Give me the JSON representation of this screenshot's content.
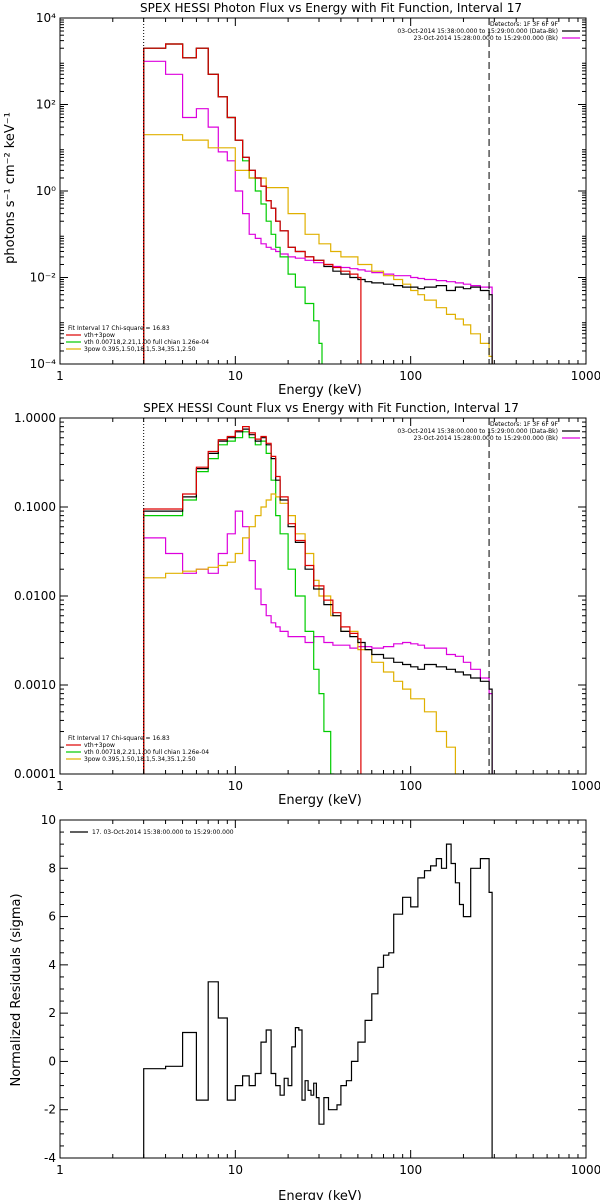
{
  "chart_data": [
    {
      "type": "line",
      "title": "SPEX HESSI Photon Flux vs Energy with Fit Function, Interval 17",
      "xlabel": "Energy (keV)",
      "ylabel": "photons s⁻¹ cm⁻² keV⁻¹",
      "xscale": "log",
      "yscale": "log",
      "xlim": [
        1,
        1000
      ],
      "ylim": [
        0.0001,
        10000
      ],
      "x_ticks": [
        {
          "value": 1,
          "label": "1"
        },
        {
          "value": 10,
          "label": "10"
        },
        {
          "value": 100,
          "label": "100"
        },
        {
          "value": 1000,
          "label": "1000"
        }
      ],
      "y_ticks": [
        {
          "value": 0.0001,
          "label": "10⁻⁴"
        },
        {
          "value": 0.01,
          "label": "10⁻²"
        },
        {
          "value": 1,
          "label": "10⁰"
        },
        {
          "value": 100,
          "label": "10²"
        },
        {
          "value": 10000,
          "label": "10⁴"
        }
      ],
      "vlines": [
        {
          "x": 3,
          "style": "dotted",
          "color": "#000000"
        },
        {
          "x": 280,
          "style": "dashed",
          "color": "#000000"
        }
      ],
      "legend_topright": [
        {
          "text": "Detectors: 1F 3F 6F 9F",
          "color": ""
        },
        {
          "text": "03-Oct-2014 15:38:00.000 to 15:29:00.000 (Data-Bk)",
          "color": "#000000"
        },
        {
          "text": "23-Oct-2014 15:28:00.000 to 15:29:00.000 (Bk)",
          "color": "#dd00dd"
        }
      ],
      "legend_bottomleft": [
        {
          "text": "Fit Interval 17    Chi-square = 16.83",
          "color": ""
        },
        {
          "text": "vth+3pow",
          "color": "#dd0000"
        },
        {
          "text": "vth 0.00718,2.21,1.00  full chian 1.26e-04",
          "color": "#00cc00"
        },
        {
          "text": "3pow 0.395,1.50,18.1,5.34,35.1,2.50",
          "color": "#e0b000"
        }
      ],
      "series": [
        {
          "color": "#dd00dd",
          "x": [
            3,
            4,
            5,
            6,
            7,
            8,
            9,
            10,
            11,
            12,
            13,
            14,
            15,
            16,
            17,
            18,
            20,
            22,
            25,
            28,
            32,
            36,
            40,
            45,
            50,
            55,
            60,
            70,
            80,
            90,
            100,
            110,
            120,
            140,
            160,
            180,
            200,
            220,
            250,
            280
          ],
          "y": [
            1000,
            500,
            50,
            80,
            30,
            8,
            5,
            1,
            0.3,
            0.1,
            0.08,
            0.06,
            0.05,
            0.045,
            0.04,
            0.035,
            0.03,
            0.028,
            0.025,
            0.022,
            0.02,
            0.018,
            0.017,
            0.016,
            0.015,
            0.014,
            0.013,
            0.012,
            0.011,
            0.011,
            0.01,
            0.0095,
            0.009,
            0.0085,
            0.008,
            0.0075,
            0.007,
            0.0065,
            0.006,
            0.006
          ]
        },
        {
          "color": "#00cc00",
          "x": [
            3,
            4,
            5,
            6,
            7,
            8,
            9,
            10,
            11,
            12,
            13,
            14,
            15,
            16,
            17,
            18,
            20,
            22,
            25,
            28,
            30
          ],
          "y": [
            2000,
            2500,
            1200,
            2000,
            500,
            150,
            50,
            15,
            5,
            2,
            1,
            0.5,
            0.2,
            0.1,
            0.05,
            0.03,
            0.012,
            0.006,
            0.0025,
            0.001,
            0.0003
          ]
        },
        {
          "color": "#e0b000",
          "x": [
            3,
            5,
            7,
            10,
            12,
            15,
            20,
            25,
            30,
            35,
            40,
            50,
            60,
            70,
            80,
            90,
            100,
            110,
            120,
            140,
            160,
            180,
            200,
            220,
            250,
            280
          ],
          "y": [
            20,
            15,
            10,
            3,
            2,
            1.2,
            0.3,
            0.1,
            0.06,
            0.04,
            0.03,
            0.02,
            0.014,
            0.011,
            0.009,
            0.007,
            0.005,
            0.004,
            0.003,
            0.002,
            0.0014,
            0.0011,
            0.0008,
            0.0005,
            0.0003,
            0.00015
          ]
        },
        {
          "color": "#000000",
          "x": [
            3,
            4,
            5,
            6,
            7,
            8,
            9,
            10,
            11,
            12,
            13,
            14,
            15,
            16,
            17,
            18,
            20,
            22,
            25,
            28,
            32,
            36,
            40,
            45,
            50,
            55,
            60,
            70,
            80,
            90,
            100,
            110,
            120,
            140,
            160,
            180,
            200,
            220,
            250,
            280
          ],
          "y": [
            2000,
            2500,
            1200,
            2000,
            500,
            150,
            50,
            15,
            6,
            3,
            2,
            1.3,
            0.6,
            0.4,
            0.2,
            0.12,
            0.05,
            0.04,
            0.03,
            0.025,
            0.018,
            0.014,
            0.012,
            0.01,
            0.009,
            0.008,
            0.0075,
            0.007,
            0.0065,
            0.006,
            0.006,
            0.0055,
            0.006,
            0.0065,
            0.005,
            0.006,
            0.0055,
            0.006,
            0.005,
            0.004
          ]
        },
        {
          "color": "#dd0000",
          "x": [
            3,
            4,
            5,
            6,
            7,
            8,
            9,
            10,
            11,
            12,
            13,
            14,
            15,
            16,
            17,
            18,
            20,
            22,
            25,
            28,
            32,
            36,
            40,
            45,
            50
          ],
          "y": [
            2000,
            2500,
            1200,
            2000,
            500,
            150,
            50,
            15,
            6,
            3,
            2,
            1.3,
            0.6,
            0.4,
            0.2,
            0.12,
            0.05,
            0.04,
            0.03,
            0.025,
            0.02,
            0.017,
            0.014,
            0.012,
            0.01
          ]
        }
      ]
    },
    {
      "type": "line",
      "title": "SPEX HESSI Count Flux vs Energy with Fit Function, Interval 17",
      "xlabel": "Energy (keV)",
      "ylabel": "",
      "xscale": "log",
      "yscale": "log",
      "xlim": [
        1,
        1000
      ],
      "ylim": [
        0.0001,
        1
      ],
      "x_ticks": [
        {
          "value": 1,
          "label": "1"
        },
        {
          "value": 10,
          "label": "10"
        },
        {
          "value": 100,
          "label": "100"
        },
        {
          "value": 1000,
          "label": "1000"
        }
      ],
      "y_ticks": [
        {
          "value": 0.0001,
          "label": "0.0001"
        },
        {
          "value": 0.001,
          "label": "0.0010"
        },
        {
          "value": 0.01,
          "label": "0.0100"
        },
        {
          "value": 0.1,
          "label": "0.1000"
        },
        {
          "value": 1,
          "label": "1.0000"
        }
      ],
      "vlines": [
        {
          "x": 3,
          "style": "dotted",
          "color": "#000000"
        },
        {
          "x": 280,
          "style": "dashed",
          "color": "#000000"
        }
      ],
      "legend_topright": [
        {
          "text": "Detectors: 1F 3F 6F 9F",
          "color": ""
        },
        {
          "text": "03-Oct-2014 15:38:00.000 to 15:29:00.000 (Data-Bk)",
          "color": "#000000"
        },
        {
          "text": "23-Oct-2014 15:28:00.000 to 15:29:00.000 (Bk)",
          "color": "#dd00dd"
        }
      ],
      "legend_bottomleft": [
        {
          "text": "Fit Interval 17    Chi-square = 16.83",
          "color": ""
        },
        {
          "text": "vth+3pow",
          "color": "#dd0000"
        },
        {
          "text": "vth 0.00718,2.21,1.00  full chian 1.26e-04",
          "color": "#00cc00"
        },
        {
          "text": "3pow 0.395,1.50,18.1,5.34,35.1,2.50",
          "color": "#e0b000"
        }
      ],
      "series": [
        {
          "color": "#dd00dd",
          "x": [
            3,
            4,
            5,
            6,
            7,
            8,
            9,
            10,
            11,
            12,
            13,
            14,
            15,
            16,
            17,
            18,
            20,
            22,
            25,
            28,
            32,
            36,
            40,
            45,
            50,
            55,
            60,
            70,
            80,
            90,
            100,
            110,
            120,
            140,
            160,
            180,
            200,
            220,
            250,
            280
          ],
          "y": [
            0.045,
            0.03,
            0.018,
            0.02,
            0.018,
            0.03,
            0.05,
            0.09,
            0.06,
            0.025,
            0.012,
            0.008,
            0.006,
            0.005,
            0.0045,
            0.004,
            0.0035,
            0.0035,
            0.003,
            0.0035,
            0.003,
            0.0028,
            0.0028,
            0.0026,
            0.0027,
            0.0027,
            0.0026,
            0.0027,
            0.0029,
            0.003,
            0.0029,
            0.0028,
            0.0026,
            0.0026,
            0.0022,
            0.0021,
            0.0018,
            0.0015,
            0.0012,
            0.0008
          ]
        },
        {
          "color": "#00cc00",
          "x": [
            3,
            4,
            5,
            6,
            7,
            8,
            9,
            10,
            11,
            12,
            13,
            14,
            15,
            16,
            17,
            18,
            20,
            22,
            25,
            28,
            30,
            32,
            35
          ],
          "y": [
            0.08,
            0.08,
            0.12,
            0.25,
            0.35,
            0.5,
            0.55,
            0.6,
            0.7,
            0.6,
            0.5,
            0.55,
            0.4,
            0.2,
            0.08,
            0.05,
            0.02,
            0.01,
            0.004,
            0.0015,
            0.0008,
            0.0003,
            0.0001
          ]
        },
        {
          "color": "#e0b000",
          "x": [
            3,
            4,
            5,
            6,
            7,
            8,
            9,
            10,
            11,
            12,
            13,
            14,
            15,
            16,
            17,
            18,
            20,
            22,
            25,
            28,
            30,
            35,
            40,
            50,
            60,
            70,
            80,
            90,
            100,
            120,
            140,
            160,
            180
          ],
          "y": [
            0.016,
            0.018,
            0.019,
            0.02,
            0.021,
            0.022,
            0.024,
            0.03,
            0.045,
            0.06,
            0.08,
            0.1,
            0.12,
            0.14,
            0.13,
            0.11,
            0.08,
            0.05,
            0.03,
            0.015,
            0.01,
            0.006,
            0.004,
            0.0025,
            0.0018,
            0.0014,
            0.0011,
            0.0009,
            0.0007,
            0.0005,
            0.0003,
            0.0002,
            0.0001
          ]
        },
        {
          "color": "#000000",
          "x": [
            3,
            4,
            5,
            6,
            7,
            8,
            9,
            10,
            11,
            12,
            13,
            14,
            15,
            16,
            17,
            18,
            20,
            22,
            25,
            28,
            32,
            36,
            40,
            45,
            50,
            55,
            60,
            70,
            80,
            90,
            100,
            110,
            120,
            140,
            160,
            180,
            200,
            220,
            250,
            280
          ],
          "y": [
            0.09,
            0.09,
            0.13,
            0.27,
            0.4,
            0.55,
            0.6,
            0.7,
            0.75,
            0.65,
            0.55,
            0.6,
            0.5,
            0.35,
            0.2,
            0.12,
            0.06,
            0.04,
            0.02,
            0.012,
            0.008,
            0.006,
            0.004,
            0.0035,
            0.003,
            0.0025,
            0.0022,
            0.002,
            0.0018,
            0.0017,
            0.0016,
            0.0015,
            0.0017,
            0.0016,
            0.0015,
            0.0014,
            0.0013,
            0.0012,
            0.0011,
            0.0009
          ]
        },
        {
          "color": "#dd0000",
          "x": [
            3,
            4,
            5,
            6,
            7,
            8,
            9,
            10,
            11,
            12,
            13,
            14,
            15,
            16,
            17,
            18,
            20,
            22,
            25,
            28,
            32,
            36,
            40,
            45,
            50
          ],
          "y": [
            0.095,
            0.095,
            0.14,
            0.28,
            0.42,
            0.57,
            0.62,
            0.72,
            0.8,
            0.68,
            0.58,
            0.62,
            0.52,
            0.37,
            0.22,
            0.13,
            0.065,
            0.042,
            0.022,
            0.013,
            0.009,
            0.0065,
            0.0045,
            0.0038,
            0.0033
          ]
        }
      ]
    },
    {
      "type": "line",
      "title": "",
      "xlabel": "Energy (keV)",
      "ylabel": "Normalized Residuals (sigma)",
      "xscale": "log",
      "yscale": "linear",
      "xlim": [
        1,
        1000
      ],
      "ylim": [
        -4,
        10
      ],
      "x_ticks": [
        {
          "value": 1,
          "label": "1"
        },
        {
          "value": 10,
          "label": "10"
        },
        {
          "value": 100,
          "label": "100"
        },
        {
          "value": 1000,
          "label": "1000"
        }
      ],
      "y_ticks": [
        {
          "value": -4,
          "label": "-4"
        },
        {
          "value": -2,
          "label": "-2"
        },
        {
          "value": 0,
          "label": "0"
        },
        {
          "value": 2,
          "label": "2"
        },
        {
          "value": 4,
          "label": "4"
        },
        {
          "value": 6,
          "label": "6"
        },
        {
          "value": 8,
          "label": "8"
        },
        {
          "value": 10,
          "label": "10"
        }
      ],
      "vlines": [],
      "legend_topright": [],
      "legend_bottomleft": [],
      "legend_topleft": [
        {
          "text": "17. 03-Oct-2014 15:38:00.000 to 15:29:00.000",
          "color": "#000000"
        }
      ],
      "series": [
        {
          "color": "#000000",
          "x": [
            3,
            4,
            5,
            6,
            7,
            8,
            9,
            10,
            11,
            12,
            13,
            14,
            15,
            16,
            17,
            18,
            19,
            20,
            21,
            22,
            23,
            24,
            25,
            26,
            27,
            28,
            29,
            30,
            32,
            34,
            36,
            38,
            40,
            43,
            46,
            50,
            55,
            60,
            65,
            70,
            75,
            80,
            90,
            100,
            110,
            120,
            130,
            140,
            150,
            160,
            170,
            180,
            190,
            200,
            220,
            250,
            280
          ],
          "y": [
            -0.3,
            -0.2,
            1.2,
            -1.6,
            3.3,
            1.8,
            -1.6,
            -1.0,
            -0.6,
            -1.0,
            -0.5,
            0.8,
            1.3,
            -0.5,
            -1.0,
            -1.4,
            -0.7,
            -1.0,
            0.6,
            1.4,
            1.3,
            -1.6,
            -0.8,
            -1.2,
            -1.4,
            -0.9,
            -1.5,
            -2.6,
            -1.5,
            -2.0,
            -2.0,
            -1.8,
            -1.0,
            -0.8,
            0.0,
            0.8,
            1.7,
            2.8,
            3.9,
            4.4,
            4.5,
            6.1,
            6.8,
            6.4,
            7.6,
            7.9,
            8.1,
            8.4,
            8.0,
            9.0,
            8.2,
            7.4,
            6.5,
            6.0,
            8.0,
            8.4,
            7.0
          ]
        }
      ]
    }
  ]
}
